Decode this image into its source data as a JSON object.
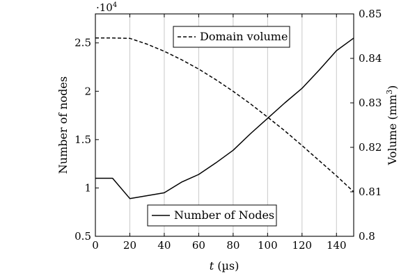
{
  "chart_data": {
    "type": "line",
    "xlabel_var": "t",
    "xlabel_unit": "(µs)",
    "x_ticks": [
      0,
      20,
      40,
      60,
      80,
      100,
      120,
      140
    ],
    "xlim": [
      0,
      150
    ],
    "ylabel_left": "Number of nodes",
    "ylabel_right_text": "Volume (mm",
    "ylabel_right_sup": "3",
    "ylabel_right_close": ")",
    "y_left_multiplier_base": "·10",
    "y_left_multiplier_exp": "4",
    "y_left_ticks": [
      "0.5",
      "1",
      "1.5",
      "2",
      "2.5"
    ],
    "y_left_tick_values": [
      0.5,
      1,
      1.5,
      2,
      2.5
    ],
    "y_left_lim": [
      0.5,
      2.8
    ],
    "y_right_ticks": [
      "0.8",
      "0.81",
      "0.82",
      "0.83",
      "0.84",
      "0.85"
    ],
    "y_right_tick_values": [
      0.8,
      0.81,
      0.82,
      0.83,
      0.84,
      0.85
    ],
    "y_right_lim": [
      0.8,
      0.85
    ],
    "grid": "vertical",
    "series": [
      {
        "name": "Number of Nodes",
        "axis": "left",
        "style": "solid",
        "x": [
          0,
          10,
          20,
          40,
          50,
          60,
          70,
          80,
          90,
          100,
          110,
          120,
          130,
          140,
          150
        ],
        "y": [
          1.1,
          1.1,
          0.89,
          0.95,
          1.06,
          1.14,
          1.26,
          1.39,
          1.56,
          1.72,
          1.88,
          2.03,
          2.22,
          2.42,
          2.55
        ]
      },
      {
        "name": "Domain volume",
        "axis": "right",
        "style": "dashed",
        "x": [
          0,
          10,
          20,
          30,
          40,
          50,
          60,
          70,
          80,
          90,
          100,
          110,
          120,
          130,
          140,
          150
        ],
        "y": [
          0.8446,
          0.8446,
          0.8445,
          0.8432,
          0.8416,
          0.8397,
          0.8376,
          0.8352,
          0.8326,
          0.8298,
          0.8268,
          0.8237,
          0.8204,
          0.817,
          0.8136,
          0.81
        ]
      }
    ],
    "legend_volume_position": "top-center",
    "legend_nodes_position": "bottom-center"
  }
}
